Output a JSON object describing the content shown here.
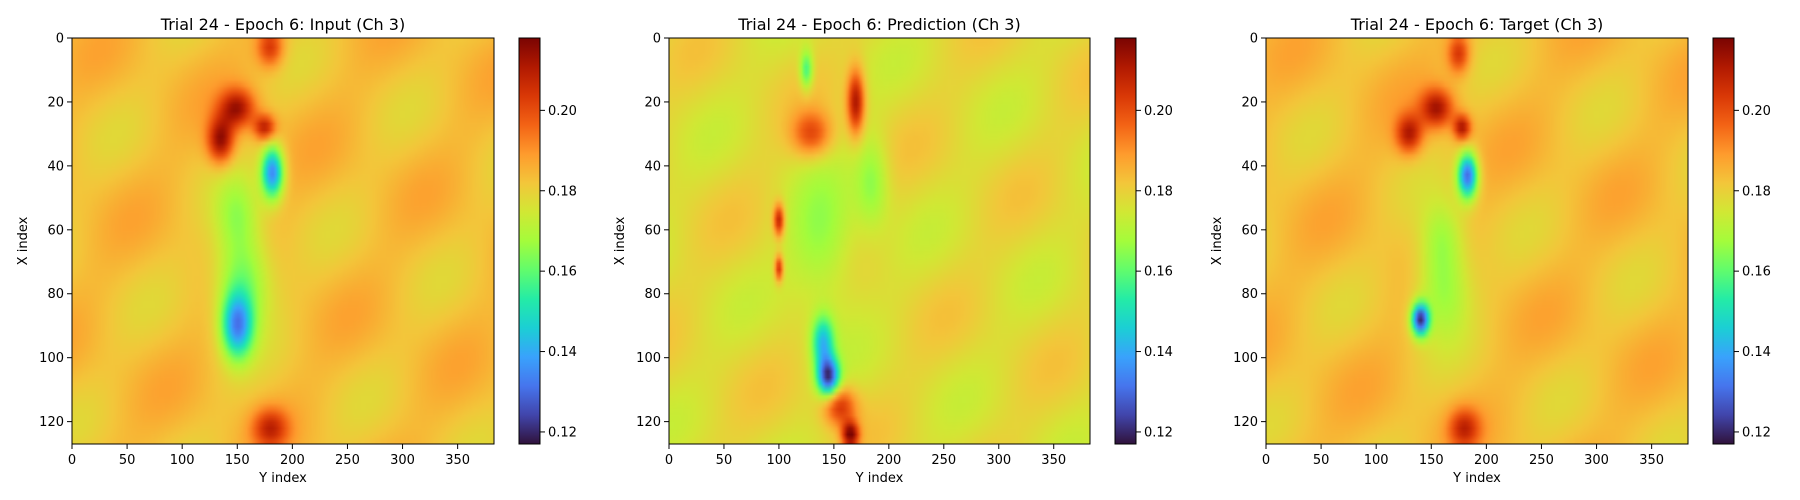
{
  "colors": {
    "colormap": "turbo",
    "colormap_stops": [
      "#30123b",
      "#4145ab",
      "#4675ed",
      "#39a2fc",
      "#1bcfd4",
      "#24eca6",
      "#61fc6c",
      "#a4fc3b",
      "#d1e834",
      "#f3c63a",
      "#fe9b2d",
      "#f36315",
      "#d93806",
      "#b11901",
      "#7a0402"
    ]
  },
  "chart_data": [
    {
      "type": "heatmap",
      "title": "Trial 24 - Epoch 6: Input (Ch 3)",
      "xlabel": "Y index",
      "ylabel": "X index",
      "xlim": [
        0,
        383
      ],
      "ylim": [
        127,
        0
      ],
      "xticks": [
        0,
        50,
        100,
        150,
        200,
        250,
        300,
        350
      ],
      "yticks": [
        0,
        20,
        40,
        60,
        80,
        100,
        120
      ],
      "grid": false,
      "colorbar": {
        "range": [
          0.117,
          0.218
        ],
        "ticks": [
          0.12,
          0.14,
          0.16,
          0.18,
          0.2
        ],
        "ticklabels": [
          "0.12",
          "0.14",
          "0.16",
          "0.18",
          "0.20"
        ]
      },
      "background_value": 0.183,
      "features": [
        {
          "y": 180,
          "x": 3,
          "ry": 12,
          "rx": 6,
          "value": 0.205
        },
        {
          "y": 150,
          "x": 22,
          "ry": 16,
          "rx": 6,
          "value": 0.212
        },
        {
          "y": 135,
          "x": 32,
          "ry": 12,
          "rx": 7,
          "value": 0.215
        },
        {
          "y": 175,
          "x": 28,
          "ry": 10,
          "rx": 4,
          "value": 0.21
        },
        {
          "y": 182,
          "x": 42,
          "ry": 10,
          "rx": 8,
          "value": 0.135
        },
        {
          "y": 150,
          "x": 55,
          "ry": 20,
          "rx": 12,
          "value": 0.17
        },
        {
          "y": 150,
          "x": 90,
          "ry": 14,
          "rx": 10,
          "value": 0.14
        },
        {
          "y": 155,
          "x": 75,
          "ry": 25,
          "rx": 15,
          "value": 0.16
        },
        {
          "y": 180,
          "x": 122,
          "ry": 16,
          "rx": 6,
          "value": 0.205
        }
      ]
    },
    {
      "type": "heatmap",
      "title": "Trial 24 - Epoch 6: Prediction (Ch 3)",
      "xlabel": "Y index",
      "ylabel": "X index",
      "xlim": [
        0,
        383
      ],
      "ylim": [
        127,
        0
      ],
      "xticks": [
        0,
        50,
        100,
        150,
        200,
        250,
        300,
        350
      ],
      "yticks": [
        0,
        20,
        40,
        60,
        80,
        100,
        120
      ],
      "grid": false,
      "colorbar": {
        "range": [
          0.117,
          0.218
        ],
        "ticks": [
          0.12,
          0.14,
          0.16,
          0.18,
          0.2
        ],
        "ticklabels": [
          "0.12",
          "0.14",
          "0.16",
          "0.18",
          "0.20"
        ]
      },
      "background_value": 0.178,
      "features": [
        {
          "y": 170,
          "x": 20,
          "ry": 8,
          "rx": 10,
          "value": 0.212
        },
        {
          "y": 130,
          "x": 30,
          "ry": 18,
          "rx": 7,
          "value": 0.2
        },
        {
          "y": 125,
          "x": 10,
          "ry": 6,
          "rx": 6,
          "value": 0.155
        },
        {
          "y": 185,
          "x": 45,
          "ry": 15,
          "rx": 14,
          "value": 0.165
        },
        {
          "y": 100,
          "x": 57,
          "ry": 5,
          "rx": 5,
          "value": 0.21
        },
        {
          "y": 100,
          "x": 72,
          "ry": 4,
          "rx": 4,
          "value": 0.208
        },
        {
          "y": 140,
          "x": 65,
          "ry": 30,
          "rx": 20,
          "value": 0.165
        },
        {
          "y": 140,
          "x": 95,
          "ry": 10,
          "rx": 8,
          "value": 0.145
        },
        {
          "y": 145,
          "x": 106,
          "ry": 10,
          "rx": 6,
          "value": 0.125
        },
        {
          "y": 155,
          "x": 115,
          "ry": 15,
          "rx": 6,
          "value": 0.205
        },
        {
          "y": 165,
          "x": 124,
          "ry": 8,
          "rx": 4,
          "value": 0.215
        }
      ]
    },
    {
      "type": "heatmap",
      "title": "Trial 24 - Epoch 6: Target (Ch 3)",
      "xlabel": "Y index",
      "ylabel": "X index",
      "xlim": [
        0,
        383
      ],
      "ylim": [
        127,
        0
      ],
      "xticks": [
        0,
        50,
        100,
        150,
        200,
        250,
        300,
        350
      ],
      "yticks": [
        0,
        20,
        40,
        60,
        80,
        100,
        120
      ],
      "grid": false,
      "colorbar": {
        "range": [
          0.117,
          0.218
        ],
        "ticks": [
          0.12,
          0.14,
          0.16,
          0.18,
          0.2
        ],
        "ticklabels": [
          "0.12",
          "0.14",
          "0.16",
          "0.18",
          "0.20"
        ]
      },
      "background_value": 0.183,
      "features": [
        {
          "y": 175,
          "x": 5,
          "ry": 10,
          "rx": 6,
          "value": 0.205
        },
        {
          "y": 155,
          "x": 22,
          "ry": 15,
          "rx": 6,
          "value": 0.212
        },
        {
          "y": 130,
          "x": 30,
          "ry": 12,
          "rx": 6,
          "value": 0.21
        },
        {
          "y": 178,
          "x": 28,
          "ry": 8,
          "rx": 4,
          "value": 0.212
        },
        {
          "y": 183,
          "x": 43,
          "ry": 9,
          "rx": 7,
          "value": 0.13
        },
        {
          "y": 160,
          "x": 62,
          "ry": 20,
          "rx": 12,
          "value": 0.17
        },
        {
          "y": 140,
          "x": 88,
          "ry": 8,
          "rx": 5,
          "value": 0.125
        },
        {
          "y": 160,
          "x": 78,
          "ry": 25,
          "rx": 15,
          "value": 0.165
        },
        {
          "y": 180,
          "x": 122,
          "ry": 14,
          "rx": 6,
          "value": 0.205
        }
      ]
    }
  ]
}
